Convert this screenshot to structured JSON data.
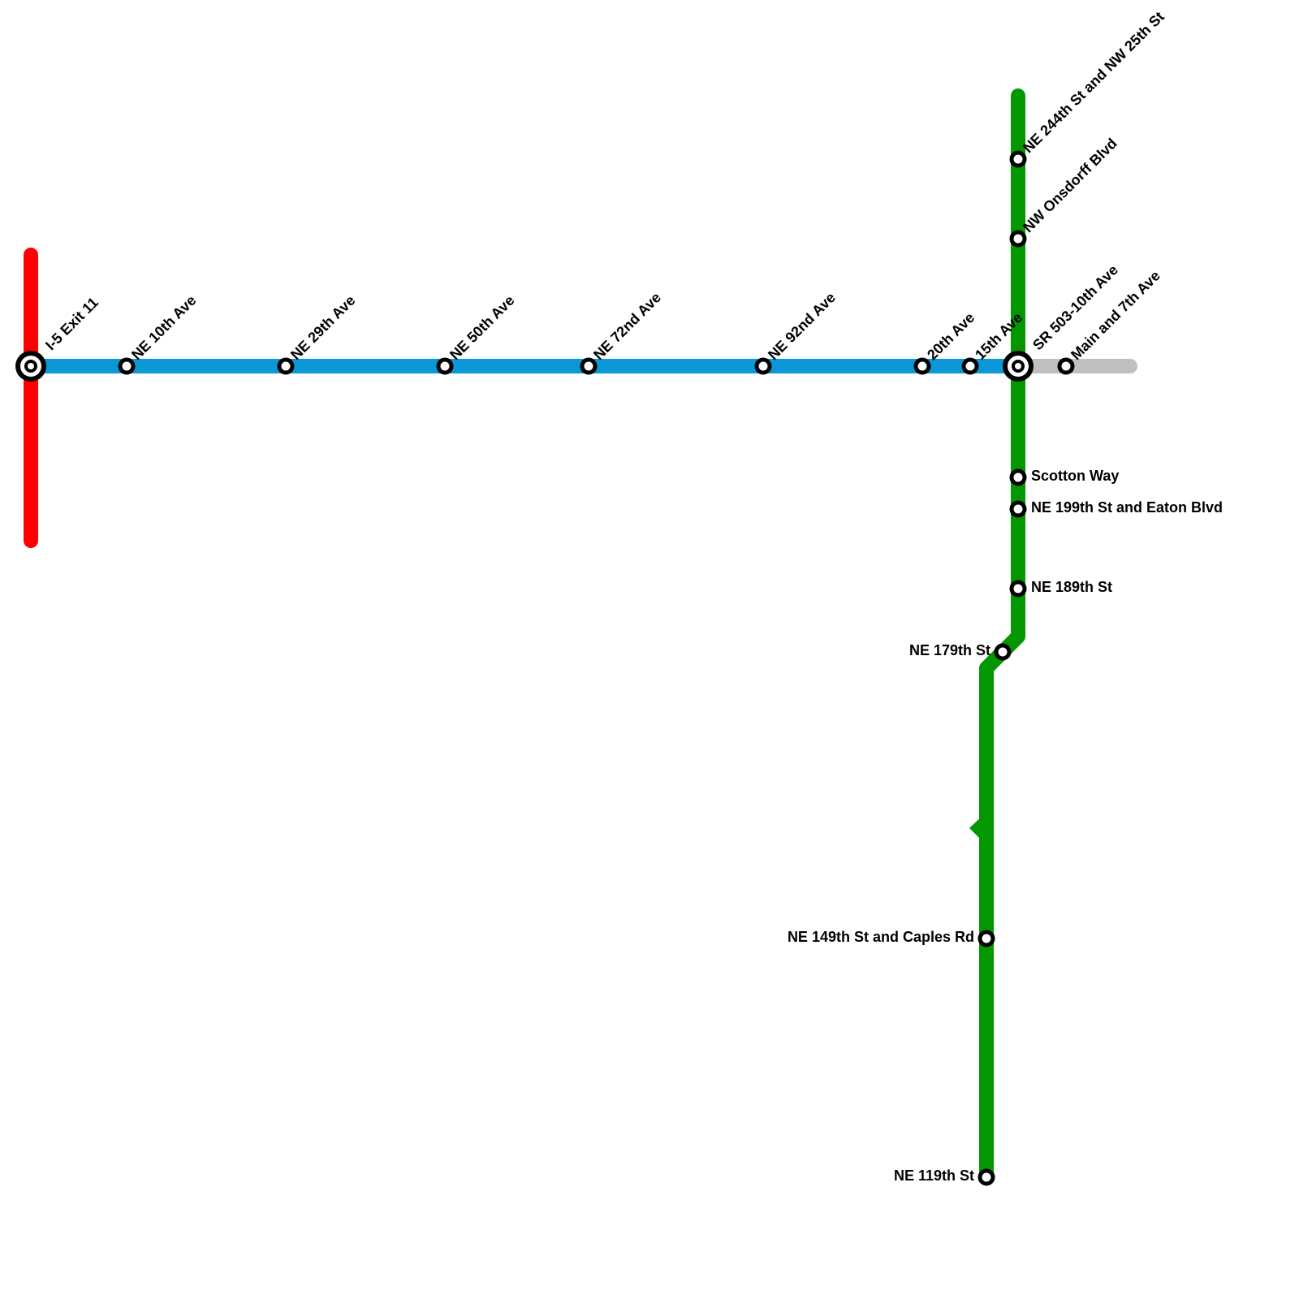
{
  "stations": [
    {
      "label": "I-5 Exit 11"
    },
    {
      "label": "NE 10th Ave"
    },
    {
      "label": "NE 29th Ave"
    },
    {
      "label": "NE 50th Ave"
    },
    {
      "label": "NE 72nd Ave"
    },
    {
      "label": "NE 92nd Ave"
    },
    {
      "label": "20th Ave"
    },
    {
      "label": "15th Ave"
    },
    {
      "label": "SR 503-10th Ave"
    },
    {
      "label": "Main and 7th Ave"
    },
    {
      "label": "NE 244th St and NW 25th St"
    },
    {
      "label": "NW Onsdorff Blvd"
    },
    {
      "label": "Scotton Way"
    },
    {
      "label": "NE 199th St and Eaton Blvd"
    },
    {
      "label": "NE 189th St"
    },
    {
      "label": "NE 179th St"
    },
    {
      "label": "NE 149th St and Caples Rd"
    },
    {
      "label": "NE 119th St"
    }
  ]
}
